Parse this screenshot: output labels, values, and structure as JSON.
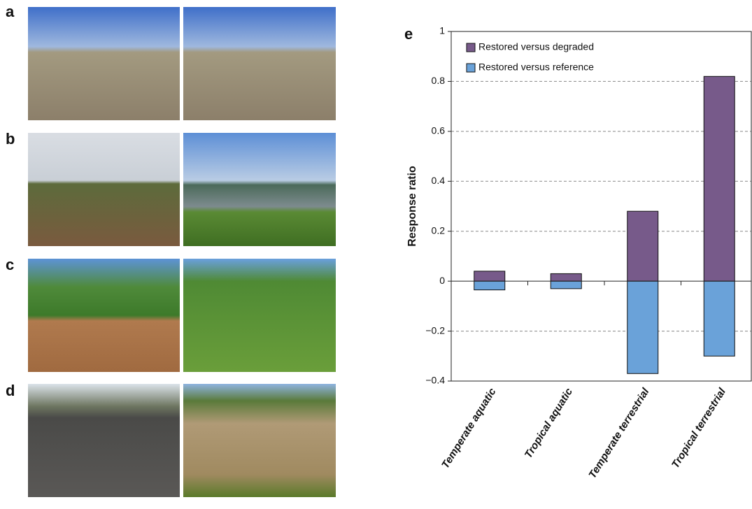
{
  "panel_labels": [
    "a",
    "b",
    "c",
    "d"
  ],
  "chart_data": {
    "type": "bar",
    "label": "e",
    "y_label": "Response ratio",
    "categories": [
      "Temperate aquatic",
      "Tropical aquatic",
      "Temperate terrestrial",
      "Tropical terrestrial"
    ],
    "series": [
      {
        "name": "Restored versus degraded",
        "color": "#775a8a",
        "values": [
          0.04,
          0.03,
          0.28,
          0.82
        ]
      },
      {
        "name": "Restored versus reference",
        "color": "#6aa2d9",
        "values": [
          -0.035,
          -0.03,
          -0.37,
          -0.3
        ]
      }
    ],
    "ylim": [
      -0.4,
      1
    ],
    "yticks": [
      {
        "value": -0.4,
        "label": "−0.4"
      },
      {
        "value": -0.2,
        "label": "−0.2"
      },
      0,
      0.2,
      0.4,
      0.6,
      0.8,
      1
    ],
    "grid": true
  }
}
